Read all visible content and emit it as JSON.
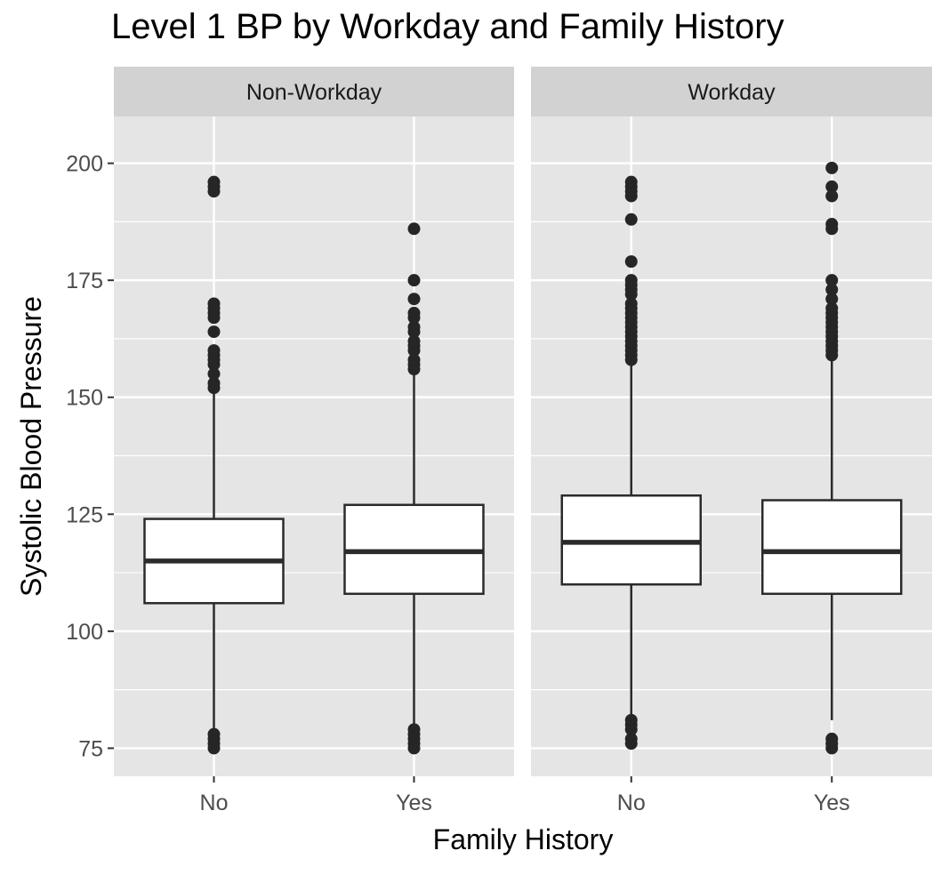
{
  "chart_data": {
    "type": "boxplot",
    "title": "Level 1 BP by Workday and Family History",
    "xlabel": "Family History",
    "ylabel": "Systolic Blood Pressure",
    "ylim": [
      69,
      210
    ],
    "yticks": [
      75,
      100,
      125,
      150,
      175,
      200
    ],
    "grid": true,
    "categories": [
      "No",
      "Yes"
    ],
    "panels": [
      {
        "label": "Non-Workday",
        "boxes": [
          {
            "category": "No",
            "lower_whisker": 79,
            "q1": 106,
            "median": 115,
            "q3": 124,
            "upper_whisker": 151,
            "outliers": [
              75,
              76,
              77,
              78,
              152,
              153,
              155,
              157,
              158,
              159,
              160,
              164,
              167,
              168,
              169,
              170,
              194,
              195,
              196
            ]
          },
          {
            "category": "Yes",
            "lower_whisker": 80,
            "q1": 108,
            "median": 117,
            "q3": 127,
            "upper_whisker": 155,
            "outliers": [
              75,
              76,
              77,
              78,
              79,
              156,
              157,
              158,
              160,
              161,
              162,
              164,
              165,
              167,
              168,
              171,
              175,
              186
            ]
          }
        ]
      },
      {
        "label": "Workday",
        "boxes": [
          {
            "category": "No",
            "lower_whisker": 82,
            "q1": 110,
            "median": 119,
            "q3": 129,
            "upper_whisker": 157,
            "outliers": [
              76,
              77,
              79,
              80,
              81,
              158,
              159,
              160,
              161,
              162,
              163,
              164,
              165,
              166,
              167,
              168,
              169,
              170,
              172,
              173,
              174,
              175,
              179,
              188,
              193,
              194,
              195,
              196
            ]
          },
          {
            "category": "Yes",
            "lower_whisker": 81,
            "q1": 108,
            "median": 117,
            "q3": 128,
            "upper_whisker": 158,
            "outliers": [
              75,
              76,
              77,
              159,
              160,
              161,
              162,
              163,
              164,
              165,
              166,
              167,
              168,
              169,
              171,
              173,
              175,
              186,
              187,
              193,
              195,
              199
            ]
          }
        ]
      }
    ],
    "colors": {
      "panel_bg": "#e5e5e5",
      "grid": "#ffffff",
      "strip_bg": "#d2d2d2",
      "box_fill": "#ffffff",
      "box_line": "#2b2b2b",
      "point": "#262626",
      "tick_text": "#4d4d4d"
    }
  }
}
